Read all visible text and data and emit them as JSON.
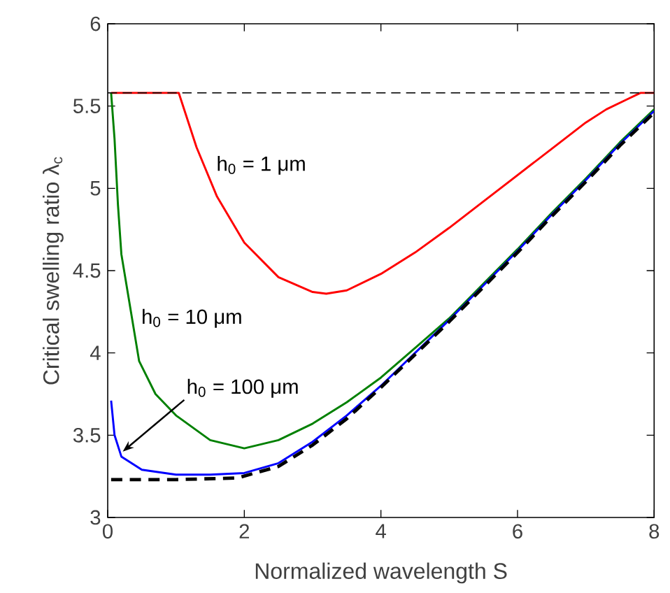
{
  "chart_data": {
    "type": "line",
    "xlabel": "Normalized wavelength S",
    "ylabel": "Critical swelling ratio  λ$_{c}$",
    "xlim": [
      0,
      8
    ],
    "ylim": [
      3,
      6
    ],
    "xticks": [
      0,
      2,
      4,
      6,
      8
    ],
    "yticks": [
      3,
      3.5,
      4,
      4.5,
      5,
      5.5,
      6
    ],
    "marker": "none",
    "series": [
      {
        "color": "#ff0000",
        "line_style": "solid",
        "x": [
          0.05,
          1.04,
          1.3,
          1.6,
          2,
          2.5,
          3,
          3.2,
          3.5,
          4,
          4.5,
          5,
          5.5,
          6,
          6.5,
          7,
          7.3,
          7.6,
          7.8,
          8
        ],
        "values": [
          5.58,
          5.58,
          5.25,
          4.95,
          4.67,
          4.46,
          4.37,
          4.36,
          4.38,
          4.48,
          4.61,
          4.76,
          4.92,
          5.08,
          5.24,
          5.4,
          5.48,
          5.54,
          5.58,
          5.58
        ]
      },
      {
        "color": "#008000",
        "line_style": "solid",
        "x": [
          0.05,
          0.1,
          0.15,
          0.2,
          0.3,
          0.46,
          0.7,
          1,
          1.5,
          2,
          2.5,
          3,
          3.5,
          4,
          4.5,
          5,
          5.5,
          6,
          6.5,
          7,
          7.5,
          8
        ],
        "values": [
          5.58,
          5.3,
          4.9,
          4.6,
          4.35,
          3.95,
          3.75,
          3.62,
          3.47,
          3.42,
          3.47,
          3.57,
          3.7,
          3.85,
          4.03,
          4.21,
          4.42,
          4.63,
          4.85,
          5.06,
          5.28,
          5.48
        ]
      },
      {
        "color": "#0000ff",
        "line_style": "solid",
        "x": [
          0.05,
          0.1,
          0.2,
          0.5,
          1,
          1.5,
          2,
          2.5,
          3,
          3.5,
          4,
          4.5,
          5,
          5.5,
          6,
          6.5,
          7,
          7.5,
          8
        ],
        "values": [
          3.71,
          3.5,
          3.37,
          3.29,
          3.26,
          3.26,
          3.27,
          3.33,
          3.46,
          3.62,
          3.8,
          4.0,
          4.2,
          4.41,
          4.62,
          4.84,
          5.05,
          5.27,
          5.47
        ]
      },
      {
        "color": "#000000",
        "line_style": "dashed",
        "x": [
          0.05,
          1,
          1.9,
          2.5,
          3,
          3.5,
          4,
          4.5,
          5,
          5.5,
          6,
          6.5,
          7,
          7.5,
          8
        ],
        "values": [
          3.23,
          3.23,
          3.24,
          3.31,
          3.44,
          3.6,
          3.79,
          3.99,
          4.19,
          4.4,
          4.61,
          4.83,
          5.04,
          5.26,
          5.46
        ]
      }
    ],
    "ref_lines": [
      {
        "axis": "y",
        "value": 5.58,
        "color": "#000000",
        "line_style": "dashed"
      }
    ],
    "annotations": [
      {
        "text": "h$_{0}$ = 1 μm",
        "x": 1.45,
        "y": 5.14
      },
      {
        "text": "h$_{0}$ = 10 μm",
        "x": 0.35,
        "y": 4.21
      },
      {
        "text": "h$_{0}$ = 100 μm",
        "x": 0.22,
        "y": 3.4
      }
    ]
  }
}
